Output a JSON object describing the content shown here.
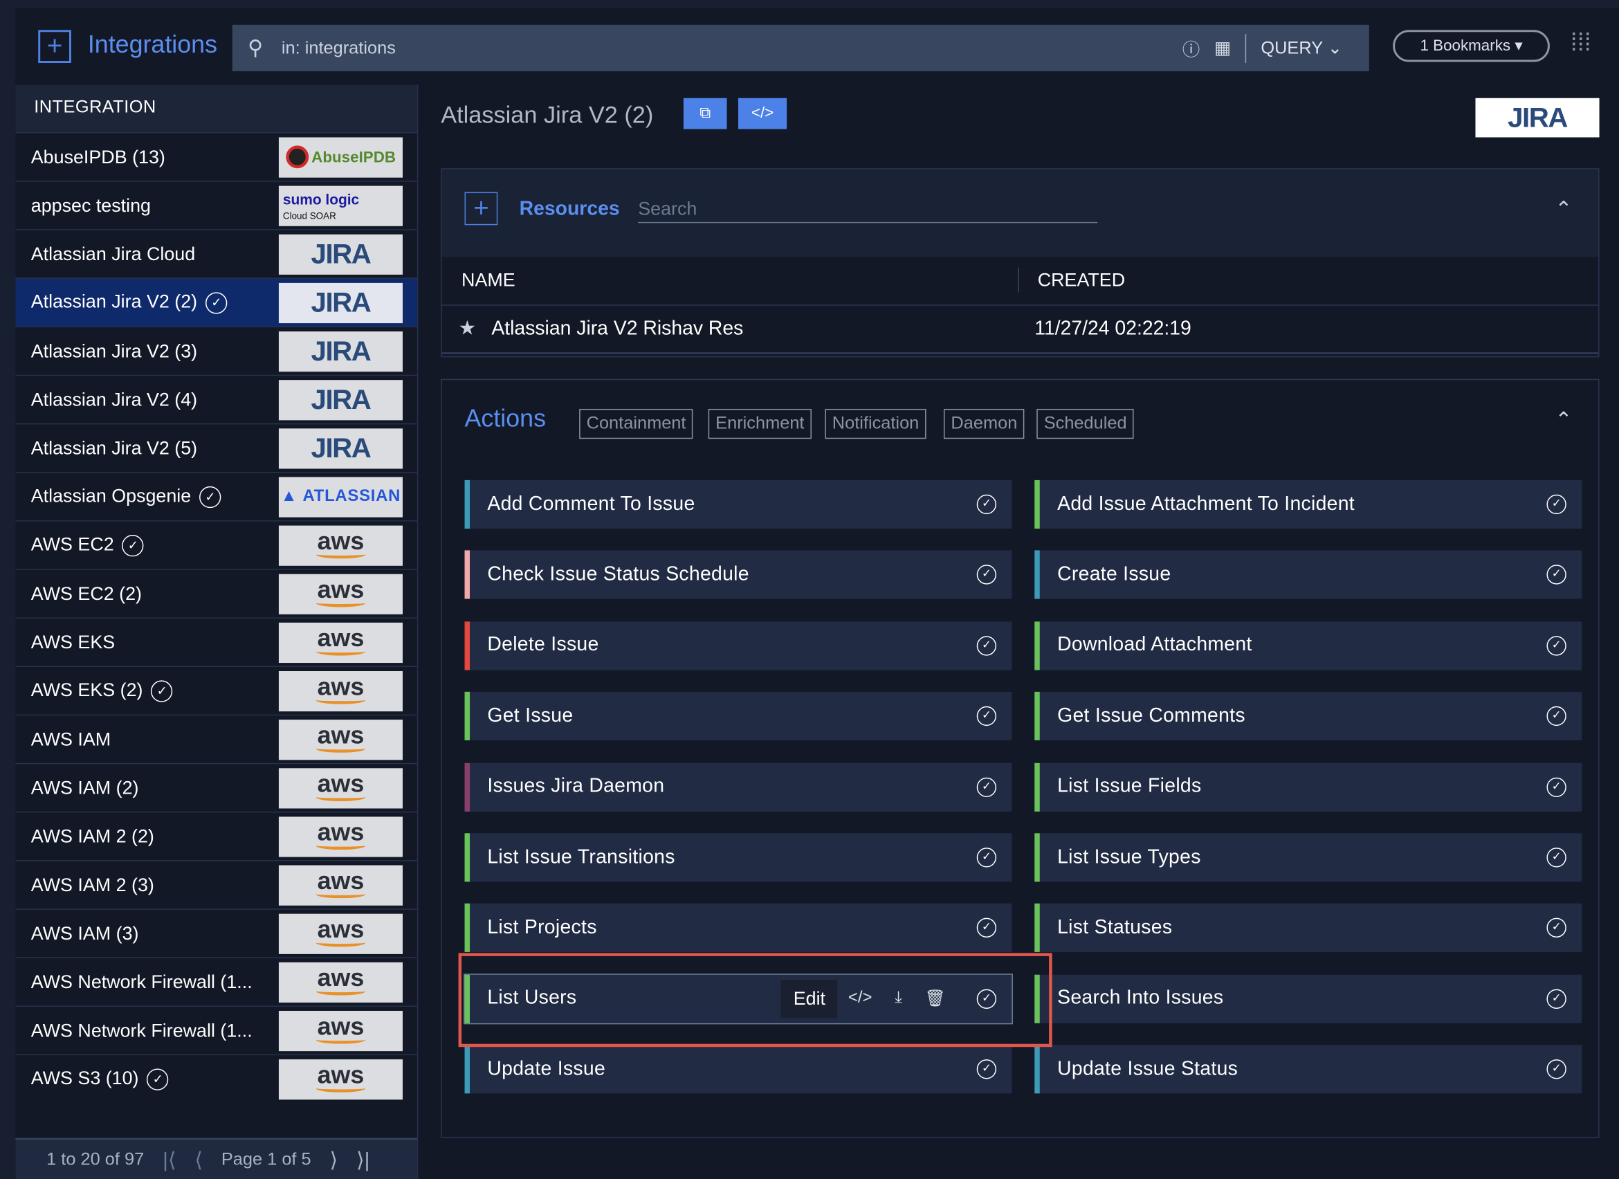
{
  "header": {
    "title": "Integrations",
    "search_value": "in: integrations",
    "query_label": "QUERY",
    "bookmarks_label": "1 Bookmarks"
  },
  "sidebar": {
    "heading": "INTEGRATION",
    "items": [
      {
        "label": "AbuseIPDB (13)",
        "logo": "AbuseIPDB",
        "check": false
      },
      {
        "label": "appsec testing",
        "logo": "sumo logic",
        "logo_sub": "Cloud SOAR",
        "check": false
      },
      {
        "label": "Atlassian Jira Cloud",
        "logo": "JIRA",
        "check": false
      },
      {
        "label": "Atlassian Jira V2 (2)",
        "logo": "JIRA",
        "check": true,
        "selected": true
      },
      {
        "label": "Atlassian Jira V2 (3)",
        "logo": "JIRA",
        "check": false
      },
      {
        "label": "Atlassian Jira V2 (4)",
        "logo": "JIRA",
        "check": false
      },
      {
        "label": "Atlassian Jira V2 (5)",
        "logo": "JIRA",
        "check": false
      },
      {
        "label": "Atlassian Opsgenie",
        "logo": "ATLASSIAN",
        "check": true
      },
      {
        "label": "AWS EC2",
        "logo": "aws",
        "check": true
      },
      {
        "label": "AWS EC2 (2)",
        "logo": "aws",
        "check": false
      },
      {
        "label": "AWS EKS",
        "logo": "aws",
        "check": false
      },
      {
        "label": "AWS EKS (2)",
        "logo": "aws",
        "check": true
      },
      {
        "label": "AWS IAM",
        "logo": "aws",
        "check": false
      },
      {
        "label": "AWS IAM (2)",
        "logo": "aws",
        "check": false
      },
      {
        "label": "AWS IAM 2 (2)",
        "logo": "aws",
        "check": false
      },
      {
        "label": "AWS IAM 2 (3)",
        "logo": "aws",
        "check": false
      },
      {
        "label": "AWS IAM (3)",
        "logo": "aws",
        "check": false
      },
      {
        "label": "AWS Network Firewall (1...",
        "logo": "aws",
        "check": false
      },
      {
        "label": "AWS Network Firewall (1...",
        "logo": "aws",
        "check": false
      },
      {
        "label": "AWS S3 (10)",
        "logo": "aws",
        "check": true
      }
    ],
    "pagination": {
      "range": "1 to 20 of 97",
      "page": "Page 1 of 5"
    }
  },
  "main": {
    "title": "Atlassian Jira V2 (2)",
    "logo": "JIRA",
    "resources": {
      "title": "Resources",
      "search_placeholder": "Search",
      "columns": [
        "NAME",
        "CREATED"
      ],
      "rows": [
        {
          "name": "Atlassian Jira V2 Rishav Res",
          "created": "11/27/24 02:22:19"
        }
      ]
    },
    "actions": {
      "title": "Actions",
      "filters": [
        "Containment",
        "Enrichment",
        "Notification",
        "Daemon",
        "Scheduled"
      ],
      "tooltip": "Edit",
      "left": [
        {
          "label": "Add Comment To Issue",
          "color": "#3d9bb8"
        },
        {
          "label": "Check Issue Status Schedule",
          "color": "#f2a9a9"
        },
        {
          "label": "Delete Issue",
          "color": "#e5483e"
        },
        {
          "label": "Get Issue",
          "color": "#6ac25a"
        },
        {
          "label": "Issues Jira Daemon",
          "color": "#8a3f6a"
        },
        {
          "label": "List Issue Transitions",
          "color": "#6ac25a"
        },
        {
          "label": "List Projects",
          "color": "#6ac25a"
        },
        {
          "label": "List Users",
          "color": "#6ac25a"
        },
        {
          "label": "Update Issue",
          "color": "#3d9bb8"
        }
      ],
      "right": [
        {
          "label": "Add Issue Attachment To Incident",
          "color": "#6ac25a"
        },
        {
          "label": "Create Issue",
          "color": "#3d9bb8"
        },
        {
          "label": "Download Attachment",
          "color": "#6ac25a"
        },
        {
          "label": "Get Issue Comments",
          "color": "#6ac25a"
        },
        {
          "label": "List Issue Fields",
          "color": "#6ac25a"
        },
        {
          "label": "List Issue Types",
          "color": "#6ac25a"
        },
        {
          "label": "List Statuses",
          "color": "#6ac25a"
        },
        {
          "label": "Search Into Issues",
          "color": "#6ac25a"
        },
        {
          "label": "Update Issue Status",
          "color": "#3d9bb8"
        }
      ]
    }
  }
}
